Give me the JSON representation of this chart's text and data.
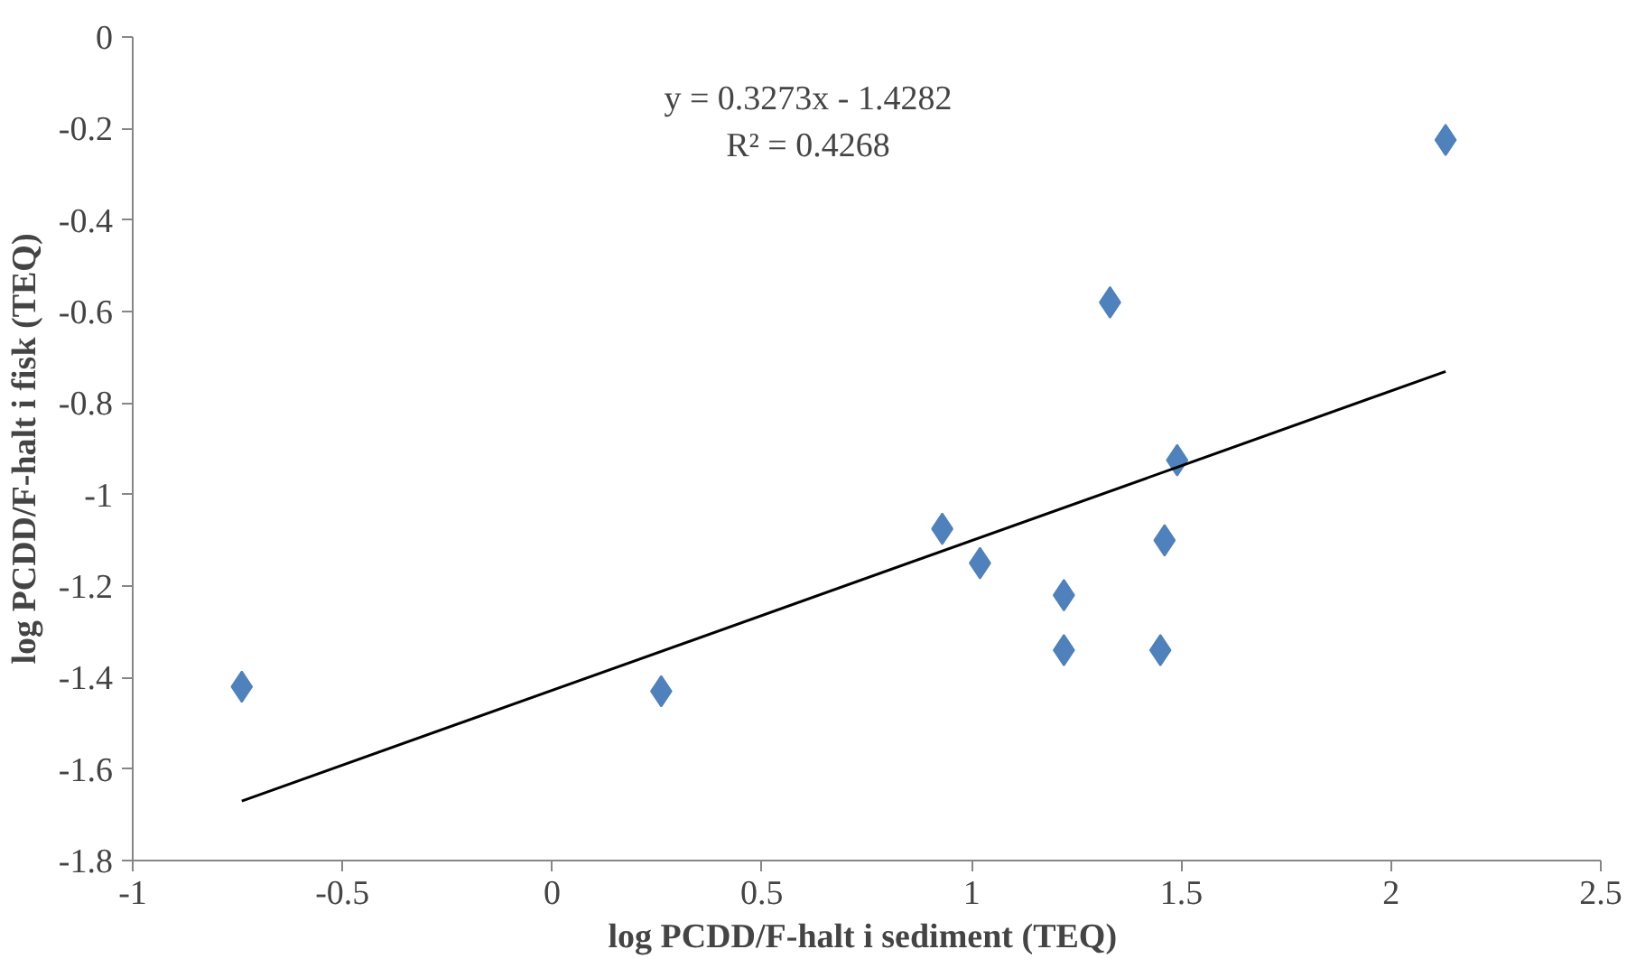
{
  "chart_data": {
    "type": "scatter",
    "xlabel": "log PCDD/F-halt i sediment  (TEQ)",
    "ylabel": "log PCDD/F-halt i fisk (TEQ)",
    "annotations": [
      "y = 0.3273x - 1.4282",
      "R² = 0.4268"
    ],
    "xlim": [
      -1,
      2.5
    ],
    "xticks": [
      -1,
      -0.5,
      0,
      0.5,
      1,
      1.5,
      2,
      2.5
    ],
    "ylim": [
      -1.8,
      0
    ],
    "yticks": [
      -1.8,
      -1.6,
      -1.4,
      -1.2,
      -1,
      -0.8,
      -0.6,
      -0.4,
      -0.2,
      0
    ],
    "grid": false,
    "series": [
      {
        "color": "#4f81bd",
        "marker": "diamond",
        "x": [
          -0.74,
          0.26,
          0.93,
          1.02,
          1.22,
          1.22,
          1.33,
          1.46,
          1.49,
          1.45,
          2.13
        ],
        "values": [
          -1.42,
          -1.43,
          -1.075,
          -1.15,
          -1.22,
          -1.34,
          -0.58,
          -1.1,
          -0.925,
          -1.34,
          -0.225
        ]
      },
      {
        "type": "line",
        "marker": "none",
        "color": "#000000",
        "x": [
          -0.74,
          2.13
        ],
        "values": [
          -1.67,
          -0.731
        ]
      }
    ]
  }
}
